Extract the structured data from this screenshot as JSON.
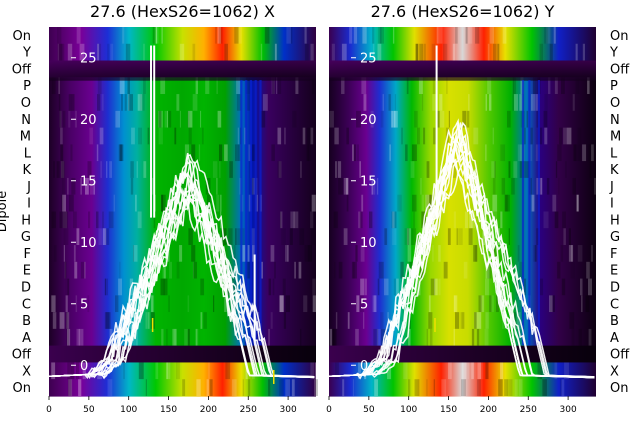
{
  "chart_data": [
    {
      "type": "heatmap",
      "title": "27.6 (HexS26=1062) X",
      "ylabel": "Dipole",
      "xlim": [
        0,
        335
      ],
      "ylim": [
        -2.5,
        27.5
      ],
      "x_ticks": [
        0,
        50,
        100,
        150,
        200,
        250,
        300
      ],
      "overlay_y_ticks": [
        0,
        5,
        10,
        15,
        20,
        25
      ],
      "rows": [
        "On",
        "Y",
        "Off",
        "P",
        "O",
        "N",
        "M",
        "L",
        "K",
        "J",
        "I",
        "H",
        "G",
        "F",
        "E",
        "D",
        "C",
        "B",
        "A",
        "Off",
        "X",
        "On"
      ],
      "overlay_curves": {
        "count": 14,
        "baseline_y": 0,
        "rise_x": [
          70,
          95
        ],
        "peak_x": 175,
        "peak_y": 15.5,
        "fall_x": [
          235,
          270
        ],
        "spikes": [
          {
            "x": 128,
            "y": 26
          },
          {
            "x": 132,
            "y": 26
          },
          {
            "x": 258,
            "y": 9
          }
        ]
      }
    },
    {
      "type": "heatmap",
      "title": "27.6 (HexS26=1062) Y",
      "ylabel": "",
      "xlim": [
        0,
        335
      ],
      "ylim": [
        -2.5,
        27.5
      ],
      "x_ticks": [
        0,
        50,
        100,
        150,
        200,
        250,
        300
      ],
      "overlay_y_ticks": [
        0,
        5,
        10,
        15,
        20,
        25
      ],
      "rows": [
        "On",
        "Y",
        "Off",
        "P",
        "O",
        "N",
        "M",
        "L",
        "K",
        "J",
        "I",
        "H",
        "G",
        "F",
        "E",
        "D",
        "C",
        "B",
        "A",
        "Off",
        "X",
        "On"
      ],
      "overlay_curves": {
        "count": 14,
        "baseline_y": 0,
        "rise_x": [
          60,
          90
        ],
        "peak_x": 160,
        "peak_y": 18.5,
        "fall_x": [
          225,
          265
        ],
        "spikes": [
          {
            "x": 135,
            "y": 26
          }
        ]
      }
    }
  ]
}
